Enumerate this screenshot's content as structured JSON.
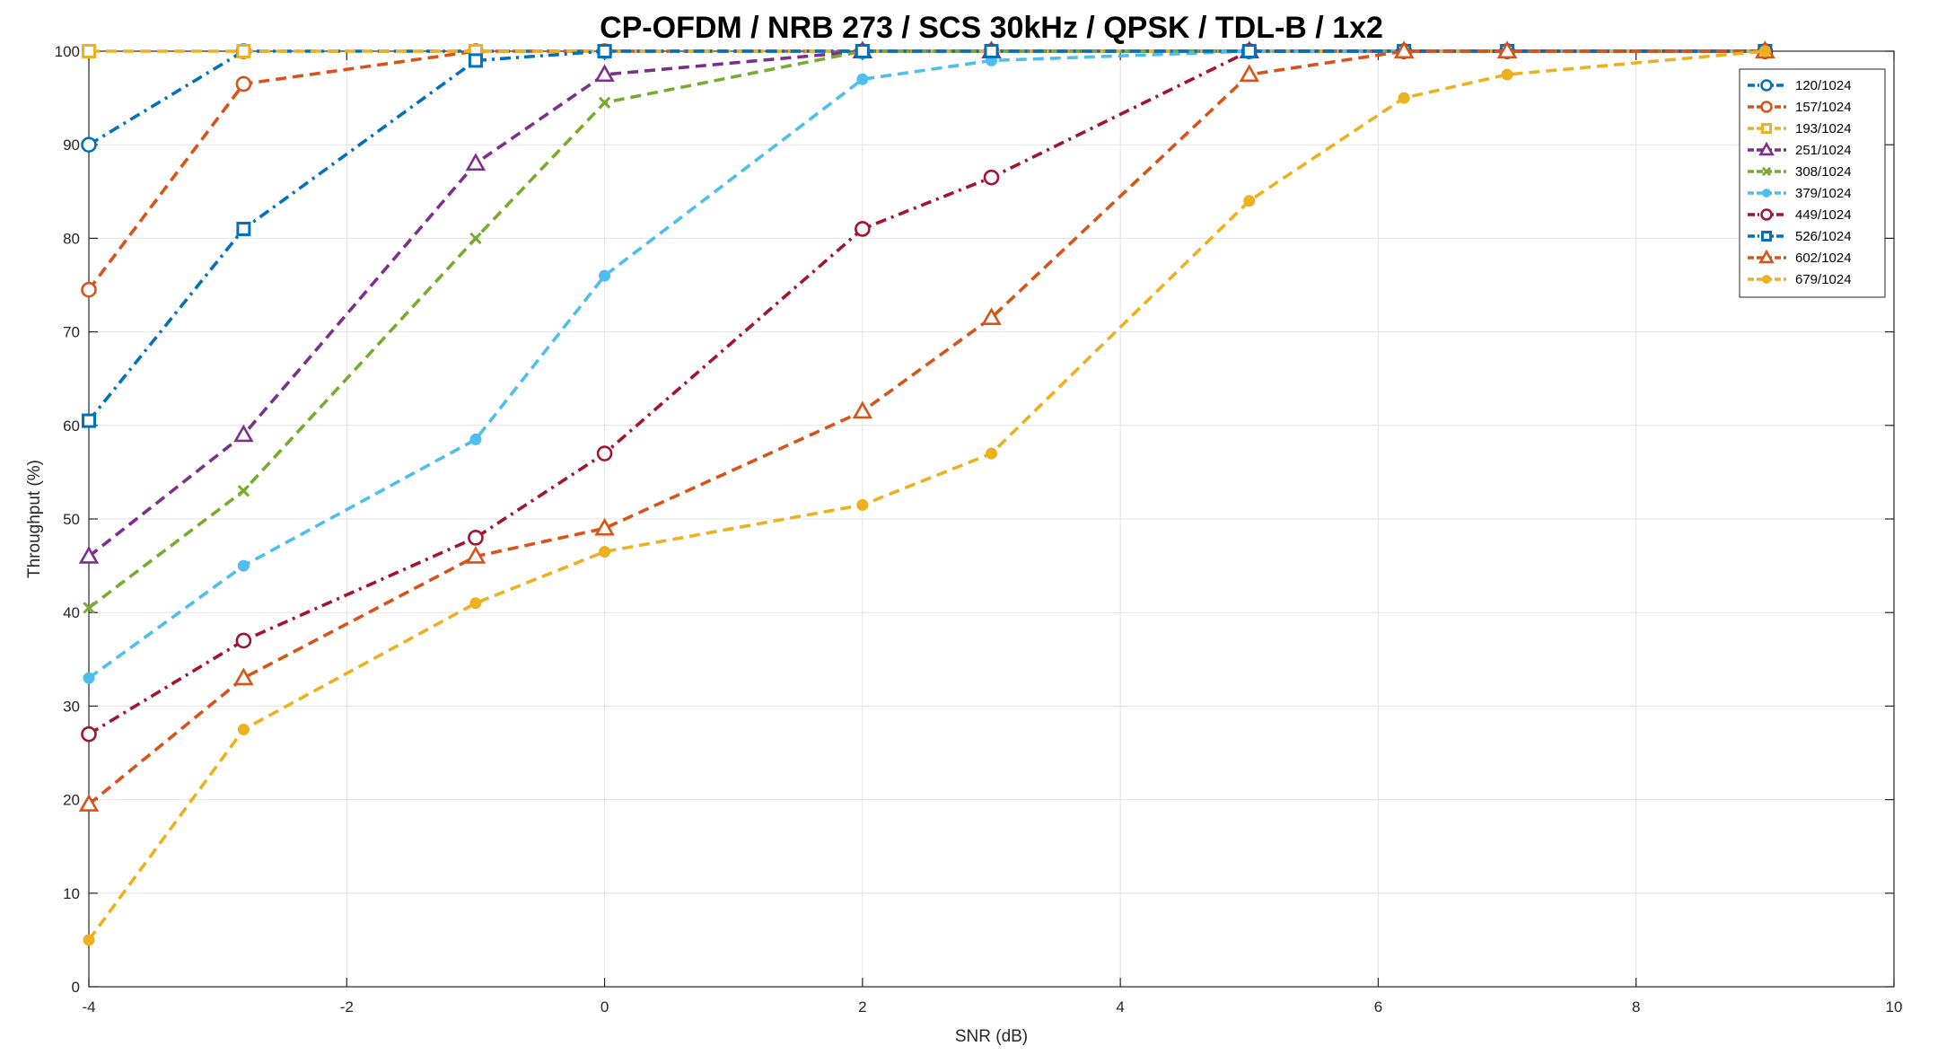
{
  "chart_data": {
    "type": "line",
    "title": "CP-OFDM / NRB 273 / SCS 30kHz / QPSK / TDL-B / 1x2",
    "xlabel": "SNR (dB)",
    "ylabel": "Throughput (%)",
    "xlim": [
      -4,
      10
    ],
    "ylim": [
      0,
      100
    ],
    "xticks": [
      -4,
      -2,
      0,
      2,
      4,
      6,
      8,
      10
    ],
    "yticks": [
      0,
      10,
      20,
      30,
      40,
      50,
      60,
      70,
      80,
      90,
      100
    ],
    "xtick_labels": [
      "-4",
      "-2",
      "0",
      "2",
      "4",
      "6",
      "8",
      "10"
    ],
    "ytick_labels": [
      "0",
      "10",
      "20",
      "30",
      "40",
      "50",
      "60",
      "70",
      "80",
      "90",
      "100"
    ],
    "grid": true,
    "legend_position": "top-right",
    "series": [
      {
        "name": "120/1024",
        "color": "#0072BD",
        "marker": "circle-open",
        "dash": "dashdot",
        "x": [
          -4,
          -2.8,
          -1,
          0,
          2,
          3,
          5,
          6.2,
          7,
          9
        ],
        "y": [
          90,
          100,
          100,
          100,
          100,
          100,
          100,
          100,
          100,
          100
        ]
      },
      {
        "name": "157/1024",
        "color": "#D95319",
        "marker": "circle-open",
        "dash": "dashed",
        "x": [
          -4,
          -2.8,
          -1,
          0,
          2,
          3,
          5,
          6.2,
          7,
          9
        ],
        "y": [
          74.5,
          96.5,
          100,
          100,
          100,
          100,
          100,
          100,
          100,
          100
        ]
      },
      {
        "name": "193/1024",
        "color": "#EDB120",
        "marker": "square-open",
        "dash": "dashed",
        "x": [
          -4,
          -2.8,
          -1,
          0,
          2,
          3,
          5,
          6.2,
          7,
          9
        ],
        "y": [
          100,
          100,
          100,
          100,
          100,
          100,
          100,
          100,
          100,
          100
        ]
      },
      {
        "name": "251/1024",
        "color": "#7E2F8E",
        "marker": "triangle-open",
        "dash": "dashed",
        "x": [
          -4,
          -2.8,
          -1,
          0,
          2,
          3,
          5,
          6.2,
          7,
          9
        ],
        "y": [
          46,
          59,
          88,
          97.5,
          100,
          100,
          100,
          100,
          100,
          100
        ]
      },
      {
        "name": "308/1024",
        "color": "#77AC30",
        "marker": "x",
        "dash": "dashed",
        "x": [
          -4,
          -2.8,
          -1,
          0,
          2,
          3,
          5,
          6.2,
          7,
          9
        ],
        "y": [
          40.5,
          53,
          80,
          94.5,
          100,
          100,
          100,
          100,
          100,
          100
        ]
      },
      {
        "name": "379/1024",
        "color": "#4DBEEE",
        "marker": "dot",
        "dash": "dashed",
        "x": [
          -4,
          -2.8,
          -1,
          0,
          2,
          3,
          5,
          6.2,
          7,
          9
        ],
        "y": [
          33,
          45,
          58.5,
          76,
          97,
          99,
          100,
          100,
          100,
          100
        ]
      },
      {
        "name": "449/1024",
        "color": "#A2142F",
        "marker": "circle-open",
        "dash": "dashdot",
        "x": [
          -4,
          -2.8,
          -1,
          0,
          2,
          3,
          5,
          6.2,
          7,
          9
        ],
        "y": [
          27,
          37,
          48,
          57,
          81,
          86.5,
          100,
          100,
          100,
          100
        ]
      },
      {
        "name": "526/1024",
        "color": "#0072BD",
        "marker": "square-open",
        "dash": "dashdot",
        "x": [
          -4,
          -2.8,
          -1,
          0,
          2,
          3,
          5,
          6.2,
          7,
          9
        ],
        "y": [
          60.5,
          81,
          99,
          100,
          100,
          100,
          100,
          100,
          100,
          100
        ]
      },
      {
        "name": "602/1024",
        "color": "#D95319",
        "marker": "triangle-open",
        "dash": "dashed",
        "x": [
          -4,
          -2.8,
          -1,
          0,
          2,
          3,
          5,
          6.2,
          7,
          9
        ],
        "y": [
          19.5,
          33,
          46,
          49,
          61.5,
          71.5,
          97.5,
          100,
          100,
          100
        ]
      },
      {
        "name": "679/1024",
        "color": "#EDB120",
        "marker": "dot",
        "dash": "dashed",
        "x": [
          -4,
          -2.8,
          -1,
          0,
          2,
          3,
          5,
          6.2,
          7,
          9
        ],
        "y": [
          5,
          27.5,
          41,
          46.5,
          51.5,
          57,
          84,
          95,
          97.5,
          100
        ]
      }
    ]
  }
}
